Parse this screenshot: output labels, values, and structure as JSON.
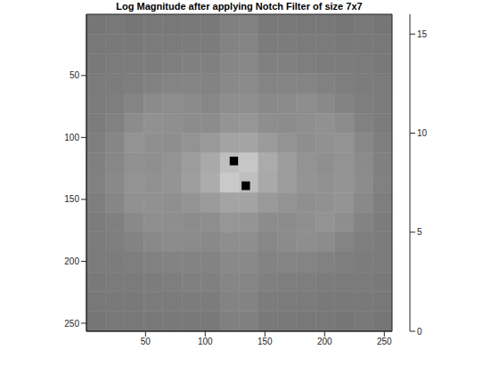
{
  "chart_data": {
    "type": "heatmap",
    "title": "Log Magnitude after applying Notch Filter of size 7x7",
    "xlim": [
      0.5,
      256.5
    ],
    "ylim": [
      0.5,
      256.5
    ],
    "xticks": [
      50,
      100,
      150,
      200,
      250
    ],
    "yticks": [
      50,
      100,
      150,
      200,
      250
    ],
    "x_edges": [
      0.5,
      16.5,
      32.5,
      48.5,
      64.5,
      80.5,
      96.5,
      112.5,
      128.5,
      144.5,
      160.5,
      176.5,
      192.5,
      208.5,
      224.5,
      240.5,
      256.5
    ],
    "y_edges": [
      0.5,
      16.5,
      32.5,
      48.5,
      64.5,
      80.5,
      96.5,
      112.5,
      128.5,
      144.5,
      160.5,
      176.5,
      192.5,
      208.5,
      224.5,
      240.5,
      256.5
    ],
    "cells": [
      [
        7.4,
        7.5,
        7.4,
        7.5,
        7.5,
        7.6,
        7.6,
        8.0,
        8.1,
        7.6,
        7.6,
        7.5,
        7.5,
        7.4,
        7.5,
        7.4
      ],
      [
        7.5,
        7.6,
        7.6,
        7.7,
        7.7,
        7.8,
        7.8,
        8.2,
        8.3,
        7.8,
        7.8,
        7.7,
        7.7,
        7.6,
        7.6,
        7.5
      ],
      [
        7.6,
        7.7,
        7.8,
        7.8,
        7.9,
        8.0,
        8.0,
        8.4,
        8.5,
        8.0,
        8.0,
        7.9,
        7.8,
        7.8,
        7.7,
        7.6
      ],
      [
        7.7,
        7.8,
        7.9,
        8.1,
        8.3,
        8.3,
        8.2,
        8.6,
        8.7,
        8.3,
        8.3,
        8.3,
        8.1,
        7.9,
        7.8,
        7.7
      ],
      [
        7.8,
        7.9,
        8.3,
        8.7,
        8.9,
        8.7,
        8.5,
        8.9,
        9.0,
        8.6,
        8.7,
        8.9,
        8.6,
        8.2,
        7.9,
        7.8
      ],
      [
        7.8,
        8.1,
        8.8,
        9.1,
        9.0,
        8.8,
        8.8,
        9.3,
        9.4,
        8.9,
        8.8,
        9.0,
        9.1,
        8.8,
        8.1,
        7.8
      ],
      [
        7.9,
        8.4,
        9.2,
        9.0,
        8.9,
        9.2,
        9.6,
        10.2,
        10.3,
        9.7,
        9.2,
        8.9,
        9.1,
        9.2,
        8.5,
        7.9
      ],
      [
        8.0,
        8.5,
        9.1,
        9.0,
        9.2,
        9.8,
        10.6,
        12.0,
        12.4,
        10.7,
        9.8,
        9.2,
        9.0,
        9.2,
        8.7,
        8.0
      ],
      [
        8.1,
        8.6,
        9.2,
        9.1,
        9.3,
        9.9,
        10.8,
        12.6,
        12.0,
        10.6,
        9.8,
        9.3,
        9.1,
        9.3,
        8.8,
        8.1
      ],
      [
        7.9,
        8.4,
        9.1,
        9.1,
        9.0,
        9.3,
        9.7,
        10.3,
        10.2,
        9.6,
        9.2,
        9.0,
        9.1,
        9.3,
        8.6,
        7.9
      ],
      [
        7.8,
        8.0,
        8.6,
        9.0,
        8.9,
        8.8,
        8.9,
        9.4,
        9.3,
        8.8,
        8.8,
        9.0,
        9.2,
        8.9,
        8.2,
        7.8
      ],
      [
        7.8,
        7.9,
        8.2,
        8.6,
        8.8,
        8.7,
        8.6,
        8.9,
        8.9,
        8.5,
        8.7,
        8.9,
        8.8,
        8.3,
        7.9,
        7.8
      ],
      [
        7.7,
        7.8,
        7.9,
        8.1,
        8.2,
        8.2,
        8.2,
        8.6,
        8.6,
        8.2,
        8.3,
        8.3,
        8.1,
        7.9,
        7.8,
        7.7
      ],
      [
        7.6,
        7.7,
        7.7,
        7.8,
        7.9,
        8.0,
        8.0,
        8.4,
        8.4,
        8.0,
        7.9,
        7.9,
        7.8,
        7.7,
        7.7,
        7.6
      ],
      [
        7.5,
        7.6,
        7.6,
        7.7,
        7.7,
        7.8,
        7.8,
        8.2,
        8.2,
        7.8,
        7.7,
        7.7,
        7.6,
        7.6,
        7.6,
        7.5
      ],
      [
        7.4,
        7.5,
        7.5,
        7.5,
        7.6,
        7.6,
        7.6,
        8.0,
        8.0,
        7.6,
        7.5,
        7.5,
        7.5,
        7.4,
        7.5,
        7.4
      ]
    ],
    "notches": [
      {
        "x": [
          120.5,
          127.5
        ],
        "y": [
          115.5,
          122.5
        ],
        "value": 0
      },
      {
        "x": [
          130.5,
          137.5
        ],
        "y": [
          135.5,
          142.5
        ],
        "value": 0
      }
    ],
    "color_range": [
      0,
      16
    ],
    "color_ticks": [
      0,
      5,
      10,
      15
    ]
  }
}
